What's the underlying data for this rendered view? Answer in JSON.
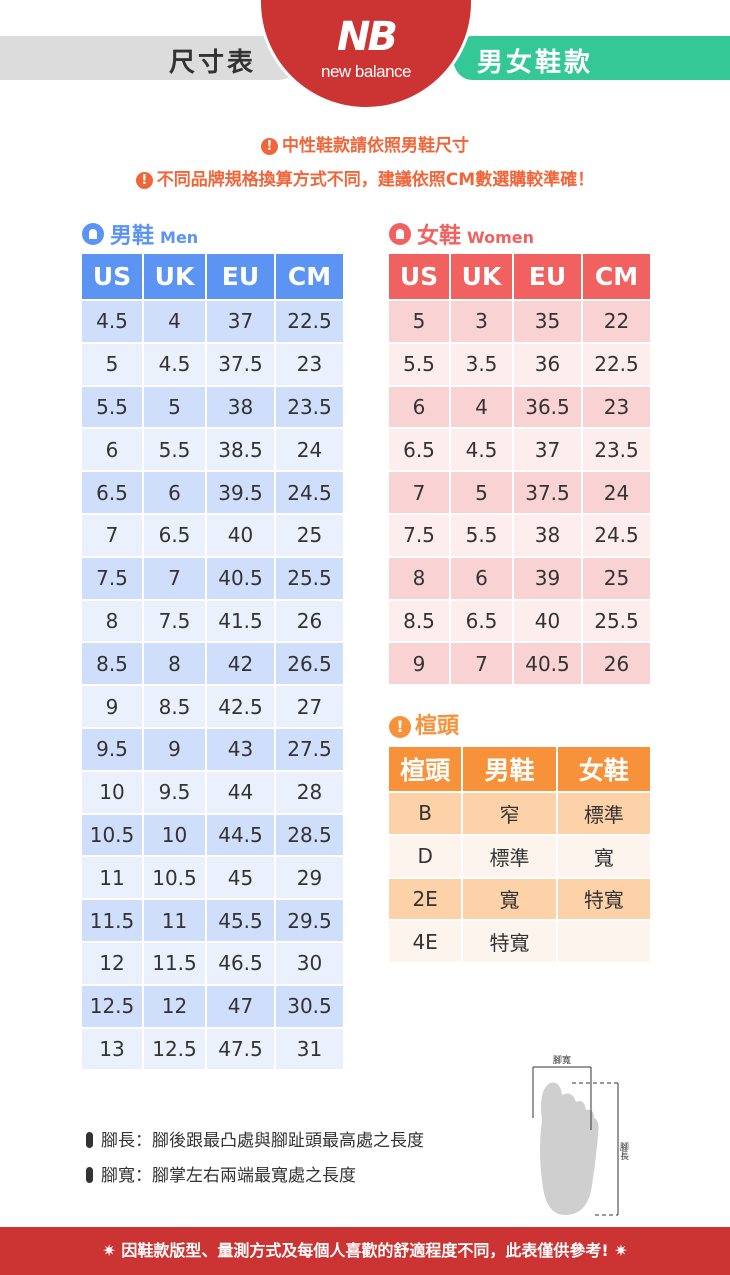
{
  "header": {
    "left_label": "尺寸表",
    "brand": "new balance",
    "right_label": "男女鞋款"
  },
  "notices": [
    "中性鞋款請依照男鞋尺寸",
    "不同品牌規格換算方式不同，建議依照CM數選購較準確！"
  ],
  "men": {
    "title": "男鞋",
    "subtitle": "Men",
    "color": "#5b94f3",
    "columns": [
      "US",
      "UK",
      "EU",
      "CM"
    ],
    "rows": [
      [
        "4.5",
        "4",
        "37",
        "22.5"
      ],
      [
        "5",
        "4.5",
        "37.5",
        "23"
      ],
      [
        "5.5",
        "5",
        "38",
        "23.5"
      ],
      [
        "6",
        "5.5",
        "38.5",
        "24"
      ],
      [
        "6.5",
        "6",
        "39.5",
        "24.5"
      ],
      [
        "7",
        "6.5",
        "40",
        "25"
      ],
      [
        "7.5",
        "7",
        "40.5",
        "25.5"
      ],
      [
        "8",
        "7.5",
        "41.5",
        "26"
      ],
      [
        "8.5",
        "8",
        "42",
        "26.5"
      ],
      [
        "9",
        "8.5",
        "42.5",
        "27"
      ],
      [
        "9.5",
        "9",
        "43",
        "27.5"
      ],
      [
        "10",
        "9.5",
        "44",
        "28"
      ],
      [
        "10.5",
        "10",
        "44.5",
        "28.5"
      ],
      [
        "11",
        "10.5",
        "45",
        "29"
      ],
      [
        "11.5",
        "11",
        "45.5",
        "29.5"
      ],
      [
        "12",
        "11.5",
        "46.5",
        "30"
      ],
      [
        "12.5",
        "12",
        "47",
        "30.5"
      ],
      [
        "13",
        "12.5",
        "47.5",
        "31"
      ]
    ]
  },
  "women": {
    "title": "女鞋",
    "subtitle": "Women",
    "color": "#f0615f",
    "columns": [
      "US",
      "UK",
      "EU",
      "CM"
    ],
    "rows": [
      [
        "5",
        "3",
        "35",
        "22"
      ],
      [
        "5.5",
        "3.5",
        "36",
        "22.5"
      ],
      [
        "6",
        "4",
        "36.5",
        "23"
      ],
      [
        "6.5",
        "4.5",
        "37",
        "23.5"
      ],
      [
        "7",
        "5",
        "37.5",
        "24"
      ],
      [
        "7.5",
        "5.5",
        "38",
        "24.5"
      ],
      [
        "8",
        "6",
        "39",
        "25"
      ],
      [
        "8.5",
        "6.5",
        "40",
        "25.5"
      ],
      [
        "9",
        "7",
        "40.5",
        "26"
      ]
    ]
  },
  "width": {
    "title": "楦頭",
    "color": "#f7913a",
    "columns": [
      "楦頭",
      "男鞋",
      "女鞋"
    ],
    "rows": [
      [
        "B",
        "窄",
        "標準"
      ],
      [
        "D",
        "標準",
        "寬"
      ],
      [
        "2E",
        "寬",
        "特寬"
      ],
      [
        "4E",
        "特寬",
        ""
      ]
    ]
  },
  "legend": [
    "腳長：腳後跟最凸處與腳趾頭最高處之長度",
    "腳寬：腳掌左右兩端最寬處之長度"
  ],
  "diagram": {
    "width_label": "腳寬",
    "length_label": "腳長"
  },
  "footer": "✷ 因鞋款版型、量測方式及每個人喜歡的舒適程度不同，此表僅供參考! ✷"
}
